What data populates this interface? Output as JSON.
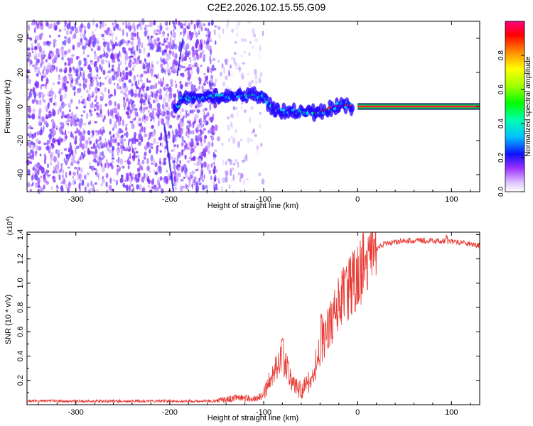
{
  "title": "C2E2.2026.102.15.55.G09",
  "chart_data": [
    {
      "type": "heatmap",
      "name": "spectrogram",
      "xlabel": "Height of straight line (km)",
      "ylabel": "Frequency (Hz)",
      "xlim": [
        -352,
        130
      ],
      "ylim": [
        -50,
        50
      ],
      "xticks": [
        -300,
        -200,
        -100,
        0,
        100
      ],
      "yticks": [
        -40,
        -20,
        0,
        20,
        40
      ],
      "colorbar": {
        "label": "Normalized spectral amplitude",
        "range": [
          0,
          1
        ],
        "ticks": [
          "0.0",
          "0.2",
          "0.4",
          "0.6",
          "0.8"
        ],
        "tick_values": [
          0.0,
          0.2,
          0.4,
          0.6,
          0.8
        ]
      },
      "ridge": [
        {
          "x": -190,
          "y": 5
        },
        {
          "x": -170,
          "y": 5
        },
        {
          "x": -150,
          "y": 6
        },
        {
          "x": -130,
          "y": 6
        },
        {
          "x": -110,
          "y": 7
        },
        {
          "x": -100,
          "y": 5
        },
        {
          "x": -90,
          "y": -2
        },
        {
          "x": -75,
          "y": -3
        },
        {
          "x": -60,
          "y": -3
        },
        {
          "x": -45,
          "y": -4
        },
        {
          "x": -30,
          "y": -1
        },
        {
          "x": -15,
          "y": 1
        },
        {
          "x": 0,
          "y": 0
        },
        {
          "x": 130,
          "y": 0
        }
      ]
    },
    {
      "type": "line",
      "name": "snr",
      "xlabel": "Height of straight line (km)",
      "ylabel": "SNR (10 * v/v)",
      "yscale_label": "(x10",
      "yscale_exp": "4",
      "yscale_close": ")",
      "xlim": [
        -352,
        130
      ],
      "ylim": [
        0,
        1.42
      ],
      "xticks": [
        -300,
        -200,
        -100,
        0,
        100
      ],
      "yticks": [
        0.2,
        0.4,
        0.6,
        0.8,
        1.0,
        1.2,
        1.4
      ],
      "ytick_labels": [
        "0.2",
        "0.4",
        "0.6",
        "0.8",
        "1.0",
        "1.2",
        "1.4"
      ],
      "color": "#e83a34",
      "envelope": [
        {
          "x": -352,
          "y": 0.03
        },
        {
          "x": -150,
          "y": 0.03
        },
        {
          "x": -130,
          "y": 0.06
        },
        {
          "x": -110,
          "y": 0.05
        },
        {
          "x": -100,
          "y": 0.08
        },
        {
          "x": -90,
          "y": 0.25
        },
        {
          "x": -80,
          "y": 0.38
        },
        {
          "x": -75,
          "y": 0.3
        },
        {
          "x": -70,
          "y": 0.18
        },
        {
          "x": -60,
          "y": 0.12
        },
        {
          "x": -50,
          "y": 0.2
        },
        {
          "x": -40,
          "y": 0.45
        },
        {
          "x": -30,
          "y": 0.65
        },
        {
          "x": -20,
          "y": 0.85
        },
        {
          "x": -10,
          "y": 0.95
        },
        {
          "x": 0,
          "y": 1.05
        },
        {
          "x": 10,
          "y": 1.2
        },
        {
          "x": 20,
          "y": 1.28
        },
        {
          "x": 30,
          "y": 1.33
        },
        {
          "x": 50,
          "y": 1.35
        },
        {
          "x": 80,
          "y": 1.35
        },
        {
          "x": 100,
          "y": 1.34
        },
        {
          "x": 130,
          "y": 1.31
        }
      ],
      "peaks": [
        {
          "x": -80,
          "y": 0.55
        },
        {
          "x": -52,
          "y": 0.2
        },
        {
          "x": -38,
          "y": 0.75
        },
        {
          "x": -12,
          "y": 1.1
        },
        {
          "x": 95,
          "y": 1.4
        }
      ]
    }
  ]
}
